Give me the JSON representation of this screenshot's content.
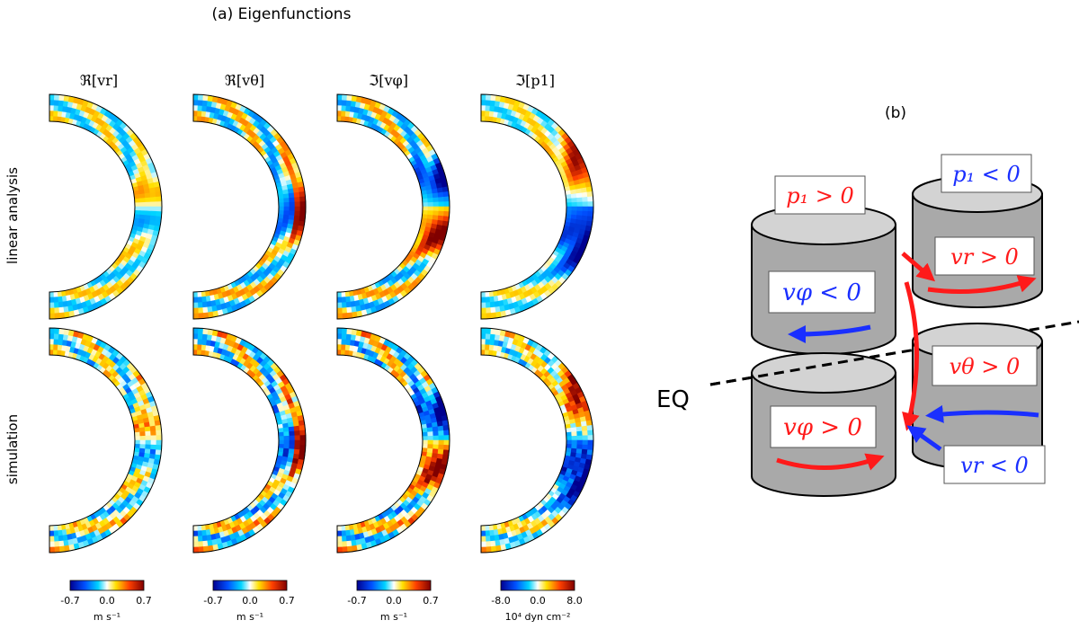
{
  "panel_a": {
    "title": "(a) Eigenfunctions",
    "row_labels": [
      "linear analysis",
      "simulation"
    ],
    "columns": [
      {
        "label": "ℜ[vr]",
        "ticks": [
          "-0.7",
          "0.0",
          "0.7"
        ],
        "unit": "m s⁻¹"
      },
      {
        "label": "ℜ[vθ]",
        "ticks": [
          "-0.7",
          "0.0",
          "0.7"
        ],
        "unit": "m s⁻¹"
      },
      {
        "label": "ℑ[vφ]",
        "ticks": [
          "-0.7",
          "0.0",
          "0.7"
        ],
        "unit": "m s⁻¹"
      },
      {
        "label": "ℑ[p1]",
        "ticks": [
          "-8.0",
          "0.0",
          "8.0"
        ],
        "unit": "10⁴ dyn cm⁻²"
      }
    ],
    "colormap": [
      "#00008f",
      "#0050ff",
      "#00d4ff",
      "#ffffff",
      "#ffe000",
      "#ff4000",
      "#800000"
    ]
  },
  "panel_b": {
    "label": "(b)",
    "eq_label": "EQ",
    "boxes": [
      {
        "text": "p₁ > 0",
        "color": "#ff1a1a"
      },
      {
        "text": "p₁ < 0",
        "color": "#1a2fff"
      },
      {
        "text": "vφ < 0",
        "color": "#1a2fff"
      },
      {
        "text": "vr > 0",
        "color": "#ff1a1a"
      },
      {
        "text": "vθ > 0",
        "color": "#ff1a1a"
      },
      {
        "text": "vφ > 0",
        "color": "#ff1a1a"
      },
      {
        "text": "vr < 0",
        "color": "#1a2fff"
      }
    ]
  }
}
